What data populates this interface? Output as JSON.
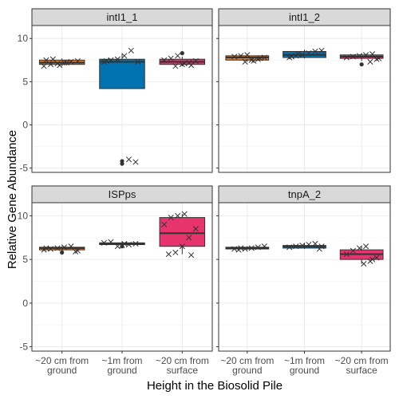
{
  "chart_data": {
    "type": "boxplot",
    "layout": "facet_wrap 2x2",
    "xlabel": "Height in the Biosolid Pile",
    "ylabel": "Relative Gene Abundance",
    "ylim": [
      -5.5,
      11.5
    ],
    "yticks": [
      -5,
      0,
      5,
      10
    ],
    "grid": true,
    "categories": [
      [
        "~20 cm from",
        "ground"
      ],
      [
        "~1m from",
        "ground"
      ],
      [
        "~20 cm from",
        "surface"
      ]
    ],
    "category_colors": [
      "#E07B2A",
      "#0072B2",
      "#E8346E"
    ],
    "facets": [
      {
        "title": "intI1_1",
        "boxes": [
          {
            "q1": 7.0,
            "median": 7.2,
            "q3": 7.5,
            "whisker_low": 6.8,
            "whisker_high": 7.7,
            "outliers": [],
            "points": [
              6.8,
              7.0,
              7.1,
              7.2,
              7.3,
              7.4,
              7.5,
              7.6,
              6.9,
              7.2
            ]
          },
          {
            "q1": 4.2,
            "median": 7.3,
            "q3": 7.6,
            "whisker_low": 4.2,
            "whisker_high": 8.2,
            "outliers": [
              -4.2,
              -4.5
            ],
            "points": [
              -4.0,
              -4.3,
              7.3,
              7.5,
              7.6,
              8.0,
              8.6,
              7.3,
              7.4
            ]
          },
          {
            "q1": 7.0,
            "median": 7.3,
            "q3": 7.6,
            "whisker_low": 6.8,
            "whisker_high": 7.9,
            "outliers": [
              8.3
            ],
            "points": [
              6.8,
              7.0,
              7.2,
              7.4,
              7.5,
              7.7,
              8.0,
              7.1,
              6.9
            ]
          }
        ]
      },
      {
        "title": "intI1_2",
        "boxes": [
          {
            "q1": 7.5,
            "median": 7.8,
            "q3": 8.0,
            "whisker_low": 7.3,
            "whisker_high": 8.2,
            "outliers": [],
            "points": [
              7.3,
              7.5,
              7.6,
              7.8,
              7.9,
              8.0,
              8.1,
              7.4,
              7.7
            ]
          },
          {
            "q1": 7.8,
            "median": 8.1,
            "q3": 8.5,
            "whisker_low": 7.7,
            "whisker_high": 8.7,
            "outliers": [],
            "points": [
              7.8,
              8.0,
              8.1,
              8.3,
              8.5,
              8.6,
              7.9,
              8.2
            ]
          },
          {
            "q1": 7.7,
            "median": 7.9,
            "q3": 8.1,
            "whisker_low": 7.4,
            "whisker_high": 8.2,
            "outliers": [
              7.0
            ],
            "points": [
              7.3,
              7.6,
              7.8,
              7.9,
              8.0,
              8.1,
              8.2,
              7.7
            ]
          }
        ]
      },
      {
        "title": "ISPps",
        "boxes": [
          {
            "q1": 6.1,
            "median": 6.3,
            "q3": 6.4,
            "whisker_low": 5.9,
            "whisker_high": 6.5,
            "outliers": [
              5.8
            ],
            "points": [
              5.9,
              6.1,
              6.2,
              6.3,
              6.4,
              6.5,
              6.0,
              6.3
            ]
          },
          {
            "q1": 6.7,
            "median": 6.8,
            "q3": 6.9,
            "whisker_low": 6.6,
            "whisker_high": 7.0,
            "outliers": [
              6.5
            ],
            "points": [
              6.6,
              6.7,
              6.8,
              6.9,
              7.0,
              6.5,
              6.8
            ]
          },
          {
            "q1": 6.5,
            "median": 8.0,
            "q3": 9.8,
            "whisker_low": 5.6,
            "whisker_high": 10.2,
            "outliers": [],
            "points": [
              5.6,
              5.8,
              6.5,
              7.5,
              8.5,
              9.0,
              9.8,
              10.0,
              10.2,
              5.5
            ]
          }
        ]
      },
      {
        "title": "tnpA_2",
        "boxes": [
          {
            "q1": 6.2,
            "median": 6.3,
            "q3": 6.4,
            "whisker_low": 6.1,
            "whisker_high": 6.5,
            "outliers": [],
            "points": [
              6.1,
              6.2,
              6.3,
              6.4,
              6.5,
              6.2,
              6.3
            ]
          },
          {
            "q1": 6.3,
            "median": 6.5,
            "q3": 6.6,
            "whisker_low": 6.2,
            "whisker_high": 6.8,
            "outliers": [],
            "points": [
              6.2,
              6.4,
              6.5,
              6.6,
              6.7,
              6.8,
              6.5
            ]
          },
          {
            "q1": 5.0,
            "median": 5.6,
            "q3": 6.1,
            "whisker_low": 4.5,
            "whisker_high": 6.5,
            "outliers": [],
            "points": [
              4.5,
              4.8,
              5.2,
              5.6,
              6.0,
              6.3,
              6.5,
              5.0
            ]
          }
        ]
      }
    ]
  }
}
